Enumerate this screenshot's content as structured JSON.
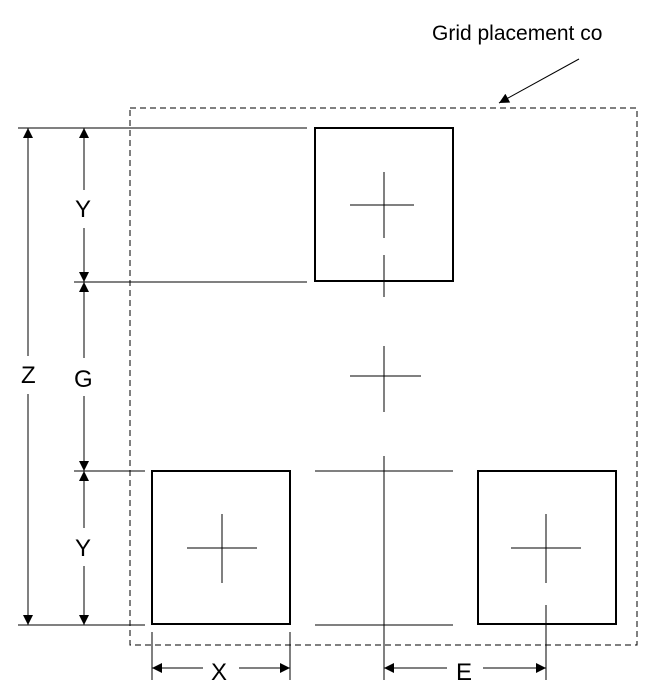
{
  "callout": {
    "text": "Grid placement co"
  },
  "dimensions": {
    "z": "Z",
    "y_top": "Y",
    "g": "G",
    "y_bottom": "Y",
    "x": "X",
    "e": "E"
  },
  "colors": {
    "line": "#000000",
    "background": "#ffffff"
  }
}
